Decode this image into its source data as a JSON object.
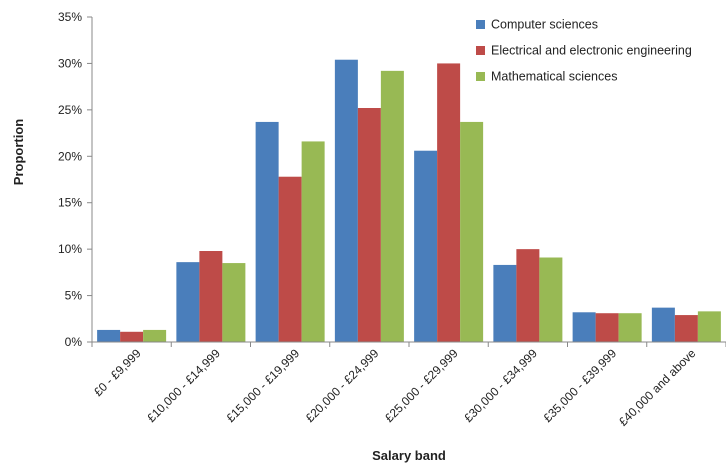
{
  "chart_data": {
    "type": "bar",
    "title": "",
    "xlabel": "Salary band",
    "ylabel": "Proportion",
    "ylim": [
      0,
      35
    ],
    "y_ticks": [
      "0%",
      "5%",
      "10%",
      "15%",
      "20%",
      "25%",
      "30%",
      "35%"
    ],
    "y_unit": "percent",
    "grid": false,
    "legend_position": "top-right",
    "categories": [
      "£0 - £9,999",
      "£10,000 - £14,999",
      "£15,000 - £19,999",
      "£20,000 - £24,999",
      "£25,000 - £29,999",
      "£30,000 - £34,999",
      "£35,000 - £39,999",
      "£40,000 and above"
    ],
    "series": [
      {
        "name": "Computer sciences",
        "color": "#4a7ebb",
        "values": [
          1.3,
          8.6,
          23.7,
          30.4,
          20.6,
          8.3,
          3.2,
          3.7
        ]
      },
      {
        "name": "Electrical and electronic engineering",
        "color": "#be4b48",
        "values": [
          1.1,
          9.8,
          17.8,
          25.2,
          30.0,
          10.0,
          3.1,
          2.9
        ]
      },
      {
        "name": "Mathematical sciences",
        "color": "#98b954",
        "values": [
          1.3,
          8.5,
          21.6,
          29.2,
          23.7,
          9.1,
          3.1,
          3.3
        ]
      }
    ]
  }
}
